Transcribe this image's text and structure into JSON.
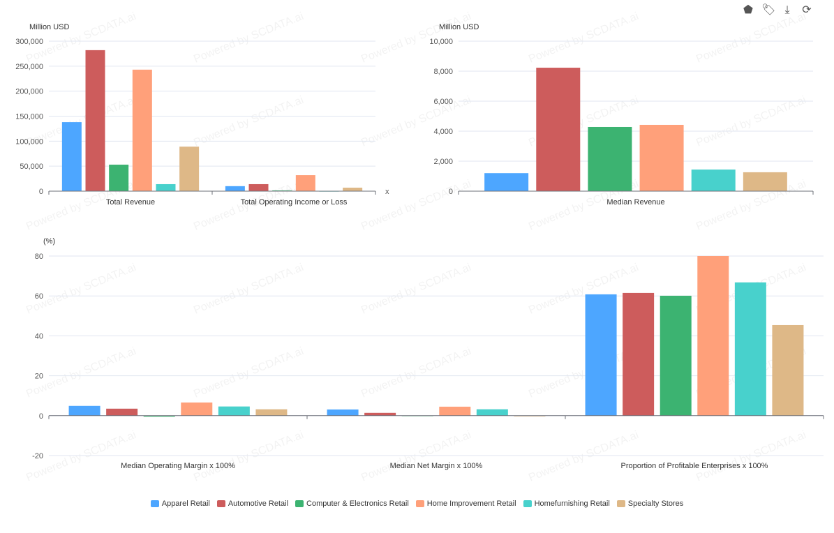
{
  "watermark": "Powered by SCDATA.ai",
  "toolbar": [
    {
      "name": "theme-icon",
      "glyph": "⬟"
    },
    {
      "name": "tag-icon",
      "glyph": "🏷"
    },
    {
      "name": "download-icon",
      "glyph": "⤓"
    },
    {
      "name": "refresh-icon",
      "glyph": "⟳"
    }
  ],
  "series": [
    {
      "name": "Apparel Retail",
      "color": "#4da6ff"
    },
    {
      "name": "Automotive Retail",
      "color": "#cd5c5c"
    },
    {
      "name": "Computer & Electronics Retail",
      "color": "#3cb371"
    },
    {
      "name": "Home Improvement Retail",
      "color": "#ffa07a"
    },
    {
      "name": "Homefurnishing Retail",
      "color": "#48d1cc"
    },
    {
      "name": "Specialty Stores",
      "color": "#deb887"
    }
  ],
  "chart_data": [
    {
      "type": "bar",
      "ylabel": "Million USD",
      "xlabel": "x",
      "ylim": [
        0,
        300000
      ],
      "yticks": [
        "0",
        "50,000",
        "100,000",
        "150,000",
        "200,000",
        "250,000",
        "300,000"
      ],
      "categories": [
        "Total Revenue",
        "Total Operating Income or Loss"
      ],
      "values": [
        [
          138000,
          282000,
          53000,
          243000,
          14000,
          89000
        ],
        [
          10000,
          14000,
          1500,
          32000,
          500,
          7000
        ]
      ]
    },
    {
      "type": "bar",
      "ylabel": "Million USD",
      "ylim": [
        0,
        10000
      ],
      "yticks": [
        "0",
        "2,000",
        "4,000",
        "6,000",
        "8,000",
        "10,000"
      ],
      "categories": [
        "Median Revenue"
      ],
      "values": [
        [
          1200,
          8230,
          4280,
          4420,
          1440,
          1260
        ]
      ]
    },
    {
      "type": "bar",
      "ylabel": "(%)",
      "ylim": [
        -20,
        80
      ],
      "yticks": [
        "-20",
        "0",
        "20",
        "40",
        "60",
        "80"
      ],
      "categories": [
        "Median Operating Margin x 100%",
        "Median Net Margin x 100%",
        "Proportion of Profitable Enterprises x 100%"
      ],
      "values": [
        [
          4.9,
          3.5,
          -0.5,
          6.6,
          4.6,
          3.2
        ],
        [
          3.1,
          1.4,
          0.1,
          4.5,
          3.2,
          -0.3
        ],
        [
          60.8,
          61.5,
          60.1,
          80,
          66.8,
          45.4
        ]
      ]
    }
  ]
}
